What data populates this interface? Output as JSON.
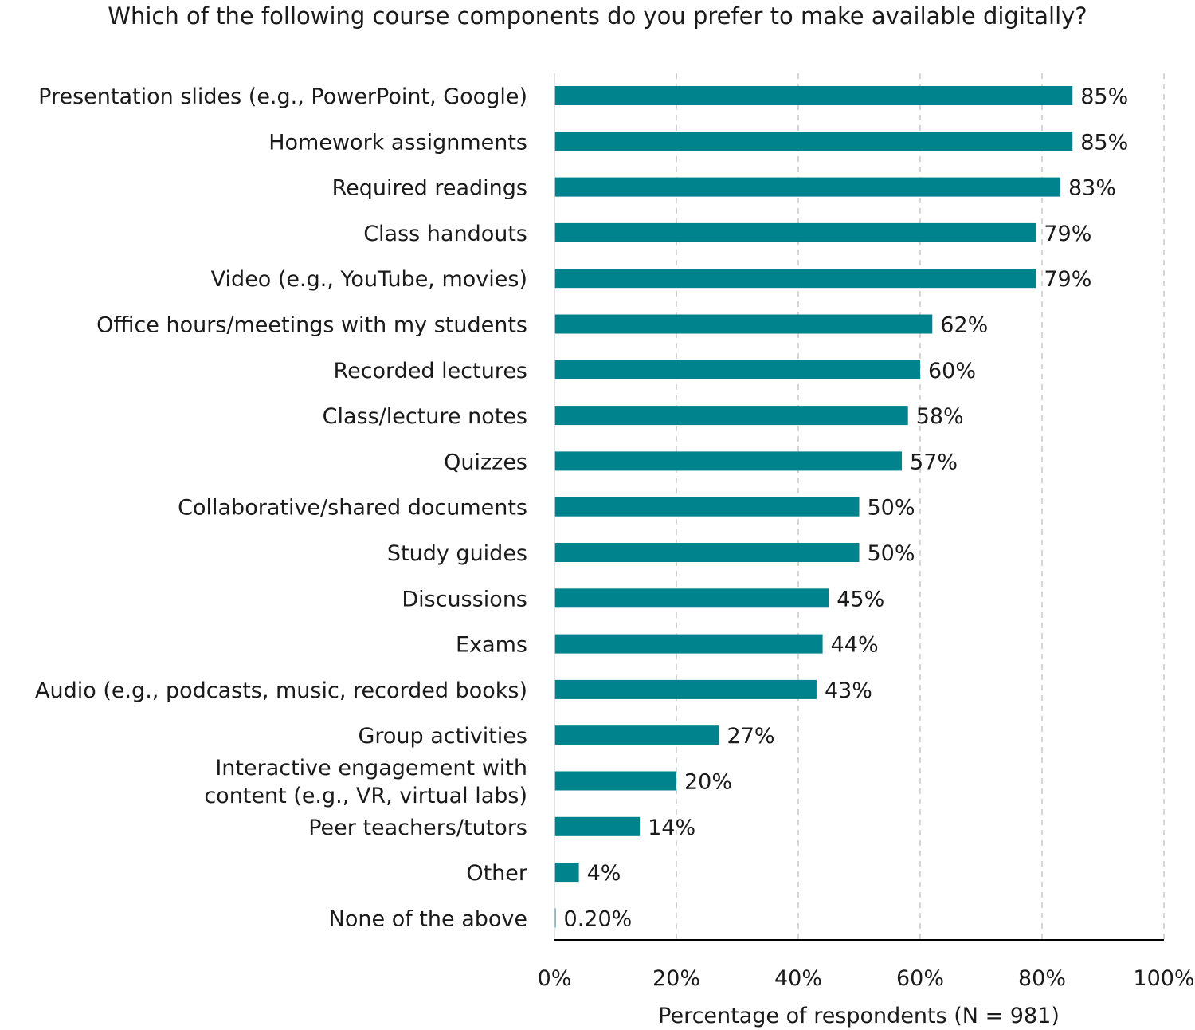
{
  "chart_data": {
    "type": "bar",
    "orientation": "horizontal",
    "title": "Which of the following course components do you prefer to make available digitally?",
    "xlabel": "Percentage of respondents (N = 981)",
    "ylabel": "",
    "xlim": [
      0,
      100
    ],
    "x_ticks": [
      "0%",
      "20%",
      "40%",
      "60%",
      "80%",
      "100%"
    ],
    "x_tick_values": [
      0,
      20,
      40,
      60,
      80,
      100
    ],
    "grid": "vertical dashed",
    "bar_color": "#00838c",
    "categories": [
      [
        "Presentation slides (e.g., PowerPoint, Google)"
      ],
      [
        "Homework assignments"
      ],
      [
        "Required readings"
      ],
      [
        "Class handouts"
      ],
      [
        "Video (e.g., YouTube, movies)"
      ],
      [
        "Office hours/meetings with my students"
      ],
      [
        "Recorded lectures"
      ],
      [
        "Class/lecture notes"
      ],
      [
        "Quizzes"
      ],
      [
        "Collaborative/shared documents"
      ],
      [
        "Study guides"
      ],
      [
        "Discussions"
      ],
      [
        "Exams"
      ],
      [
        "Audio (e.g., podcasts, music, recorded books)"
      ],
      [
        "Group activities"
      ],
      [
        "Interactive engagement with",
        "content (e.g., VR, virtual labs)"
      ],
      [
        "Peer teachers/tutors"
      ],
      [
        "Other"
      ],
      [
        "None of the above"
      ]
    ],
    "values": [
      85,
      85,
      83,
      79,
      79,
      62,
      60,
      58,
      57,
      50,
      50,
      45,
      44,
      43,
      27,
      20,
      14,
      4,
      0.2
    ],
    "value_labels": [
      "85%",
      "85%",
      "83%",
      "79%",
      "79%",
      "62%",
      "60%",
      "58%",
      "57%",
      "50%",
      "50%",
      "45%",
      "44%",
      "43%",
      "27%",
      "20%",
      "14%",
      "4%",
      "0.20%"
    ]
  }
}
